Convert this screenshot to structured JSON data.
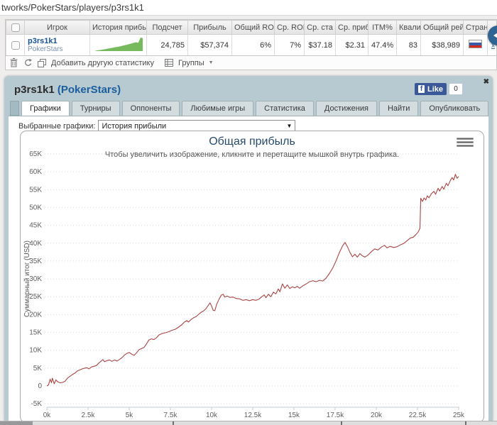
{
  "url_bar": {
    "text": "tworks/PokerStars/players/p3rs1k1"
  },
  "colors": {
    "series_red": "#AA4643",
    "spark_green": "#76ba5d",
    "panel_bg": "#b7cad1",
    "link_blue": "#15539b",
    "title_blue": "#274b6d"
  },
  "stats_table": {
    "headers": [
      "Игрок",
      "История прибыл",
      "Подсчет",
      "Прибыль",
      "Общий RO",
      "Ср. ROI",
      "Ср. ста",
      "Ср. приб",
      "ITM%",
      "Квали",
      "Общий рей",
      "Стран."
    ],
    "row": {
      "player_name": "p3rs1k1",
      "network": "PokerStars",
      "count": "24,785",
      "profit": "$57,374",
      "total_roi": "6%",
      "avg_roi": "7%",
      "avg_stake": "$37.18",
      "avg_profit": "$2.31",
      "itm": "47.4%",
      "quali": "83",
      "total_rake": "$38,989",
      "remove_label": "x",
      "sparkline": [
        0,
        0.6,
        1,
        1.4,
        1.9,
        2.3,
        2.8,
        3.2,
        3.7,
        4.2,
        4.7,
        5.2,
        5.7,
        6.3,
        6.9,
        7.5,
        8.2,
        8.9,
        9.6,
        10.3,
        9.7,
        15.6,
        15.1
      ]
    }
  },
  "toolbar": {
    "add_stat_label": "Добавить другую статистику",
    "groups_label": "Группы"
  },
  "panel": {
    "title_name": "p3rs1k1",
    "title_network": "(PokerStars)",
    "close_glyph": "✖",
    "fb_like_label": "Like",
    "fb_like_count": "0",
    "tabs": [
      {
        "label": "Графики",
        "active": true
      },
      {
        "label": "Турниры",
        "active": false
      },
      {
        "label": "Оппоненты",
        "active": false
      },
      {
        "label": "Любимые игры",
        "active": false
      },
      {
        "label": "Статистика",
        "active": false
      },
      {
        "label": "Достижения",
        "active": false
      },
      {
        "label": "Найти",
        "active": false
      },
      {
        "label": "Опубликовать",
        "active": false
      }
    ],
    "selected_charts_label": "Выбранные графики:",
    "selected_chart_value": "История прибыли"
  },
  "chart_data": {
    "type": "line",
    "title": "Общая прибыль",
    "subtitle": "Чтобы увеличить изображение, кликните и перетащите мышкой внутрь графика.",
    "xlabel": "",
    "ylabel": "Суммарный итог (USD)",
    "series_name": "История прибыли",
    "series_color": "#AA4643",
    "xlim": [
      0,
      25000
    ],
    "ylim": [
      -5000,
      65000
    ],
    "grid": true,
    "legend": "none",
    "x_ticks": {
      "values": [
        0,
        2.5,
        5,
        7.5,
        10,
        12.5,
        15,
        17.5,
        20,
        22.5,
        25
      ],
      "labels": [
        "0k",
        "2.5k",
        "5k",
        "7.5k",
        "10k",
        "12.5k",
        "15k",
        "17.5k",
        "20k",
        "22.5k",
        "25k"
      ]
    },
    "y_ticks": {
      "values": [
        -5,
        0,
        5,
        10,
        15,
        20,
        25,
        30,
        35,
        40,
        45,
        50,
        55,
        60,
        65
      ],
      "labels": [
        "-5K",
        "0",
        "5K",
        "10K",
        "15K",
        "20K",
        "25K",
        "30K",
        "35K",
        "40K",
        "45K",
        "50K",
        "55K",
        "60K",
        "65K"
      ]
    },
    "units_note": "x = tournaments in thousands, y = cumulative profit in $K",
    "points": [
      [
        0,
        0
      ],
      [
        0.1,
        0.3
      ],
      [
        0.2,
        1.9
      ],
      [
        0.28,
        0.9
      ],
      [
        0.33,
        2.2
      ],
      [
        0.45,
        0.6
      ],
      [
        0.55,
        1.7
      ],
      [
        0.65,
        1.2
      ],
      [
        0.8,
        0.9
      ],
      [
        0.95,
        1.0
      ],
      [
        1.1,
        1.3
      ],
      [
        1.25,
        2.2
      ],
      [
        1.4,
        2.7
      ],
      [
        1.55,
        3.2
      ],
      [
        1.7,
        3.6
      ],
      [
        1.85,
        4.2
      ],
      [
        2.0,
        4.5
      ],
      [
        2.15,
        4.8
      ],
      [
        2.3,
        5.0
      ],
      [
        2.45,
        5.1
      ],
      [
        2.55,
        4.8
      ],
      [
        2.7,
        5.3
      ],
      [
        2.85,
        5.5
      ],
      [
        3.0,
        5.7
      ],
      [
        3.15,
        6.4
      ],
      [
        3.3,
        7.0
      ],
      [
        3.4,
        7.4
      ],
      [
        3.5,
        6.8
      ],
      [
        3.65,
        7.1
      ],
      [
        3.8,
        7.3
      ],
      [
        3.95,
        6.9
      ],
      [
        4.1,
        7.3
      ],
      [
        4.25,
        7.0
      ],
      [
        4.4,
        7.4
      ],
      [
        4.55,
        7.9
      ],
      [
        4.7,
        8.6
      ],
      [
        4.85,
        9.1
      ],
      [
        5.0,
        9.4
      ],
      [
        5.15,
        8.9
      ],
      [
        5.3,
        8.6
      ],
      [
        5.45,
        9.3
      ],
      [
        5.6,
        10.2
      ],
      [
        5.75,
        10.5
      ],
      [
        5.9,
        10.8
      ],
      [
        6.05,
        11.8
      ],
      [
        6.2,
        12.9
      ],
      [
        6.35,
        13.2
      ],
      [
        6.5,
        13.0
      ],
      [
        6.65,
        13.5
      ],
      [
        6.8,
        14.3
      ],
      [
        7.0,
        14.7
      ],
      [
        7.2,
        14.9
      ],
      [
        7.4,
        15.2
      ],
      [
        7.6,
        15.6
      ],
      [
        7.8,
        15.9
      ],
      [
        8.0,
        16.5
      ],
      [
        8.2,
        17.2
      ],
      [
        8.35,
        17.9
      ],
      [
        8.5,
        18.3
      ],
      [
        8.6,
        17.9
      ],
      [
        8.75,
        18.6
      ],
      [
        8.9,
        19.1
      ],
      [
        9.05,
        19.4
      ],
      [
        9.2,
        20.0
      ],
      [
        9.35,
        20.6
      ],
      [
        9.5,
        21.0
      ],
      [
        9.65,
        21.6
      ],
      [
        9.8,
        22.6
      ],
      [
        9.9,
        23.3
      ],
      [
        10.0,
        22.4
      ],
      [
        10.1,
        21.2
      ],
      [
        10.2,
        21.1
      ],
      [
        10.3,
        22.8
      ],
      [
        10.45,
        24.3
      ],
      [
        10.6,
        25.5
      ],
      [
        10.7,
        25.7
      ],
      [
        10.8,
        24.9
      ],
      [
        10.95,
        25.2
      ],
      [
        11.1,
        24.8
      ],
      [
        11.3,
        24.9
      ],
      [
        11.5,
        24.5
      ],
      [
        11.7,
        24.4
      ],
      [
        11.9,
        24.0
      ],
      [
        12.1,
        24.2
      ],
      [
        12.3,
        23.9
      ],
      [
        12.5,
        24.2
      ],
      [
        12.7,
        24.0
      ],
      [
        12.9,
        24.4
      ],
      [
        13.05,
        25.0
      ],
      [
        13.2,
        25.5
      ],
      [
        13.3,
        24.7
      ],
      [
        13.45,
        25.7
      ],
      [
        13.6,
        25.0
      ],
      [
        13.75,
        26.3
      ],
      [
        13.9,
        25.8
      ],
      [
        14.05,
        27.2
      ],
      [
        14.15,
        26.4
      ],
      [
        14.3,
        28.6
      ],
      [
        14.45,
        27.4
      ],
      [
        14.6,
        28.3
      ],
      [
        14.75,
        27.3
      ],
      [
        14.9,
        27.8
      ],
      [
        15.05,
        27.5
      ],
      [
        15.2,
        27.9
      ],
      [
        15.35,
        27.4
      ],
      [
        15.55,
        28.1
      ],
      [
        15.75,
        28.6
      ],
      [
        15.95,
        29.2
      ],
      [
        16.15,
        29.5
      ],
      [
        16.35,
        29.2
      ],
      [
        16.55,
        29.6
      ],
      [
        16.75,
        29.4
      ],
      [
        16.95,
        30.2
      ],
      [
        17.15,
        31.5
      ],
      [
        17.35,
        33.0
      ],
      [
        17.55,
        35.0
      ],
      [
        17.75,
        37.3
      ],
      [
        17.95,
        39.2
      ],
      [
        18.1,
        40.2
      ],
      [
        18.25,
        39.0
      ],
      [
        18.4,
        37.4
      ],
      [
        18.55,
        36.2
      ],
      [
        18.7,
        36.9
      ],
      [
        18.85,
        36.1
      ],
      [
        19.0,
        37.1
      ],
      [
        19.15,
        36.5
      ],
      [
        19.3,
        36.1
      ],
      [
        19.5,
        36.7
      ],
      [
        19.7,
        37.6
      ],
      [
        19.9,
        38.4
      ],
      [
        20.1,
        38.1
      ],
      [
        20.3,
        38.9
      ],
      [
        20.5,
        39.4
      ],
      [
        20.65,
        38.7
      ],
      [
        20.85,
        39.1
      ],
      [
        21.05,
        38.8
      ],
      [
        21.25,
        39.0
      ],
      [
        21.45,
        39.5
      ],
      [
        21.65,
        39.9
      ],
      [
        21.85,
        40.6
      ],
      [
        22.05,
        41.4
      ],
      [
        22.25,
        41.7
      ],
      [
        22.4,
        42.4
      ],
      [
        22.55,
        43.2
      ],
      [
        22.65,
        44.2
      ],
      [
        22.7,
        52.6
      ],
      [
        22.8,
        51.7
      ],
      [
        22.9,
        52.7
      ],
      [
        23.0,
        52.1
      ],
      [
        23.1,
        53.3
      ],
      [
        23.2,
        52.7
      ],
      [
        23.35,
        53.9
      ],
      [
        23.5,
        54.5
      ],
      [
        23.6,
        53.7
      ],
      [
        23.75,
        55.4
      ],
      [
        23.85,
        54.6
      ],
      [
        24.0,
        55.9
      ],
      [
        24.1,
        55.1
      ],
      [
        24.25,
        56.8
      ],
      [
        24.35,
        56.1
      ],
      [
        24.5,
        57.6
      ],
      [
        24.6,
        58.4
      ],
      [
        24.7,
        57.7
      ],
      [
        24.8,
        59.3
      ],
      [
        24.9,
        58.2
      ],
      [
        25.0,
        58.7
      ]
    ]
  }
}
